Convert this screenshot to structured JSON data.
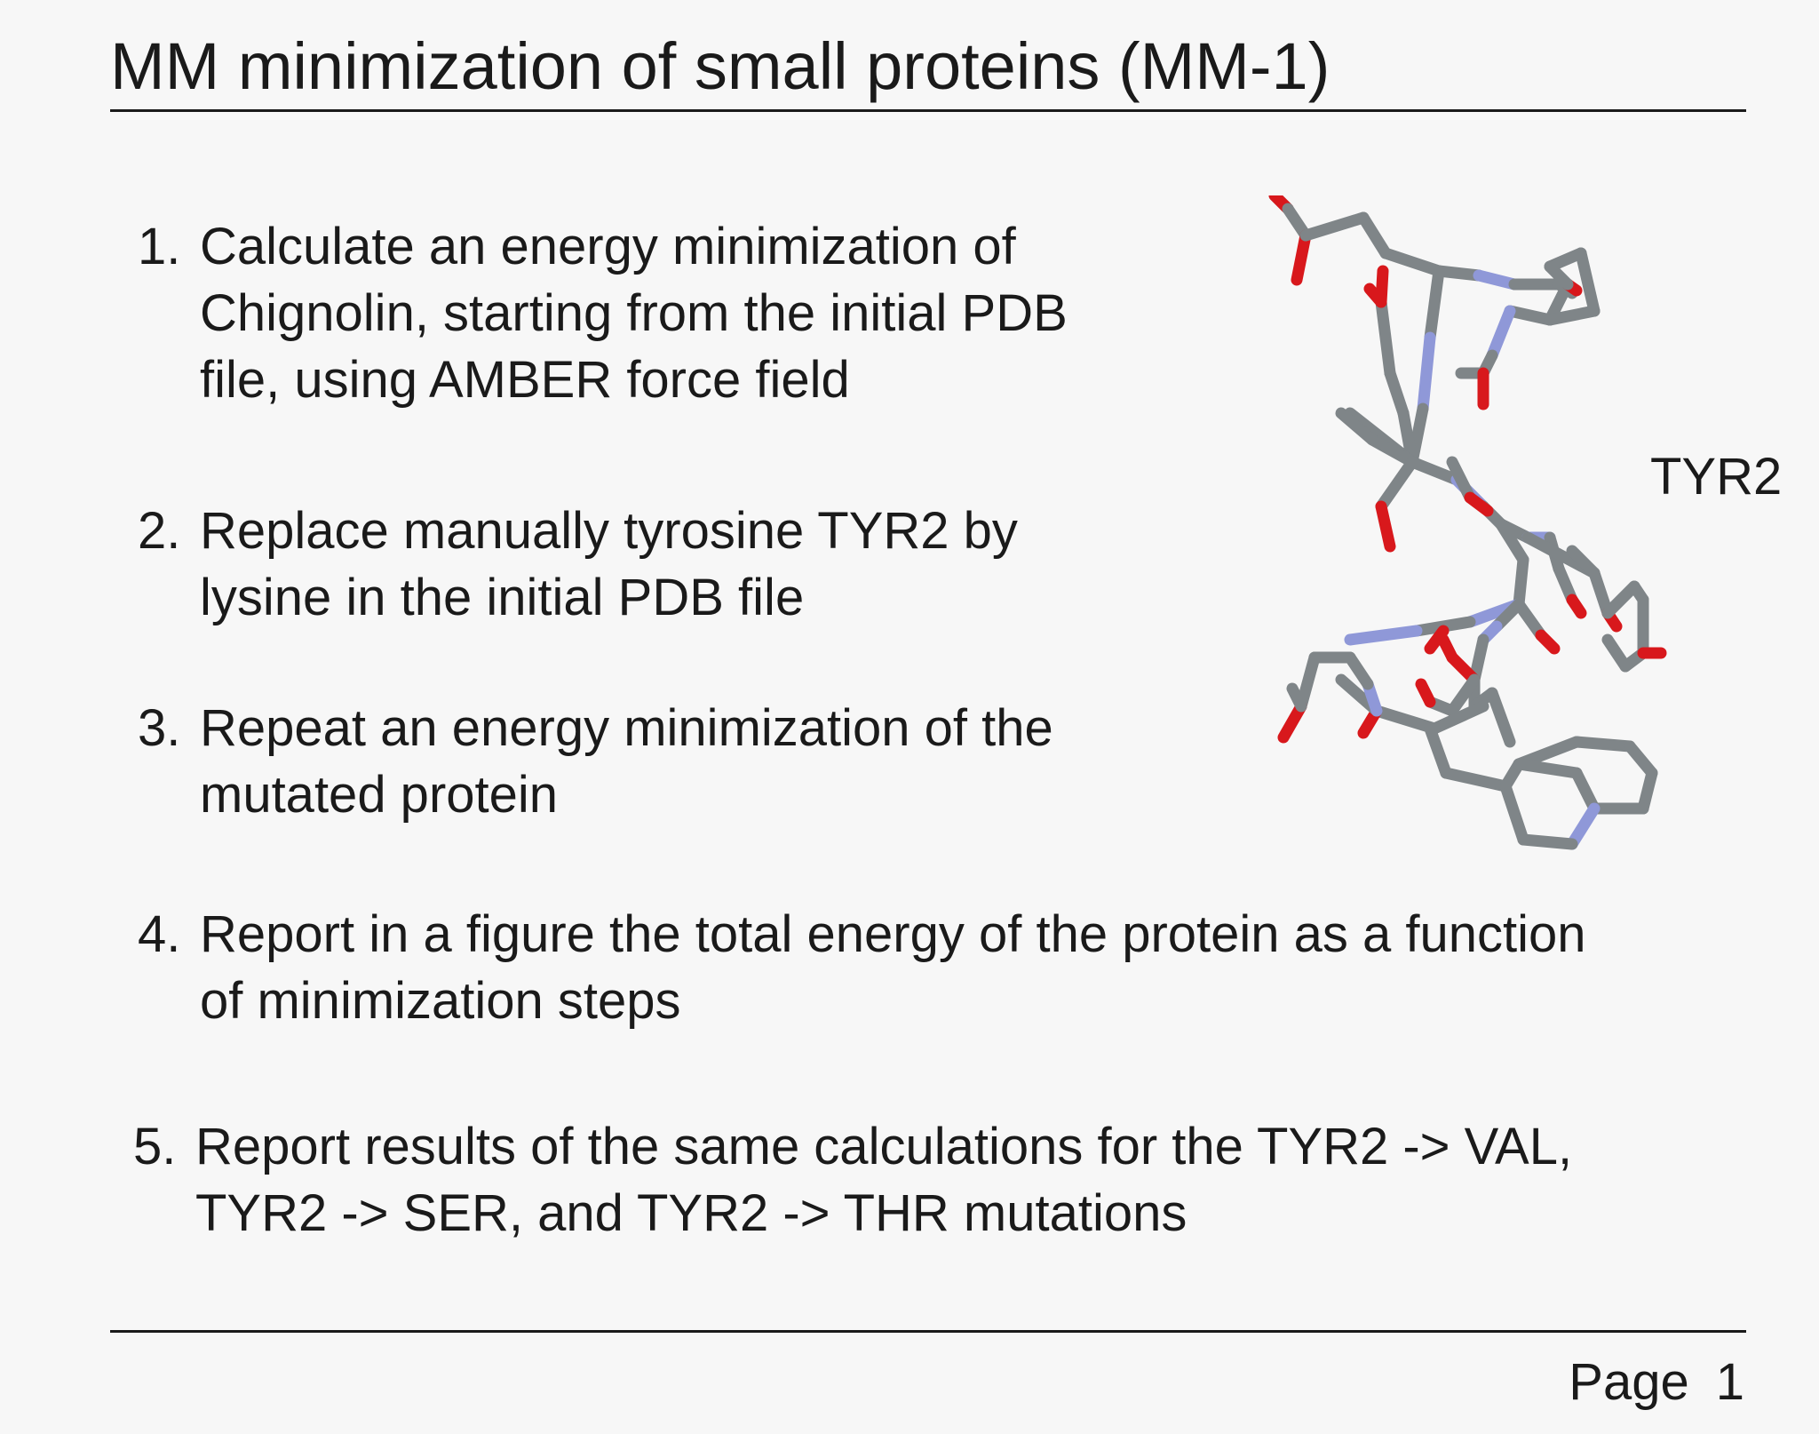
{
  "title": "MM minimization of small proteins (MM-1)",
  "tasks": [
    {
      "number": "1.",
      "lines": [
        "Calculate an energy minimization of",
        "Chignolin, starting from the initial PDB",
        "file, using AMBER force field"
      ]
    },
    {
      "number": "2.",
      "lines": [
        "Replace manually tyrosine TYR2 by",
        "lysine in the initial PDB file"
      ]
    },
    {
      "number": "3.",
      "lines": [
        "Repeat an energy minimization of the",
        "mutated protein"
      ]
    },
    {
      "number": "4.",
      "lines": [
        "Report in a figure the total energy of the protein as a function",
        "of minimization steps"
      ]
    },
    {
      "number": "5.",
      "lines": [
        "Report results of the same calculations for the TYR2 -> VAL,",
        "TYR2 -> SER, and TYR2 -> THR mutations"
      ]
    }
  ],
  "figure": {
    "label": "TYR2",
    "colors": {
      "carbon": "#7f8588",
      "nitrogen": "#8f98d8",
      "oxygen": "#d8181c"
    }
  },
  "footer": {
    "page_word": "Page",
    "page_number": "1"
  }
}
